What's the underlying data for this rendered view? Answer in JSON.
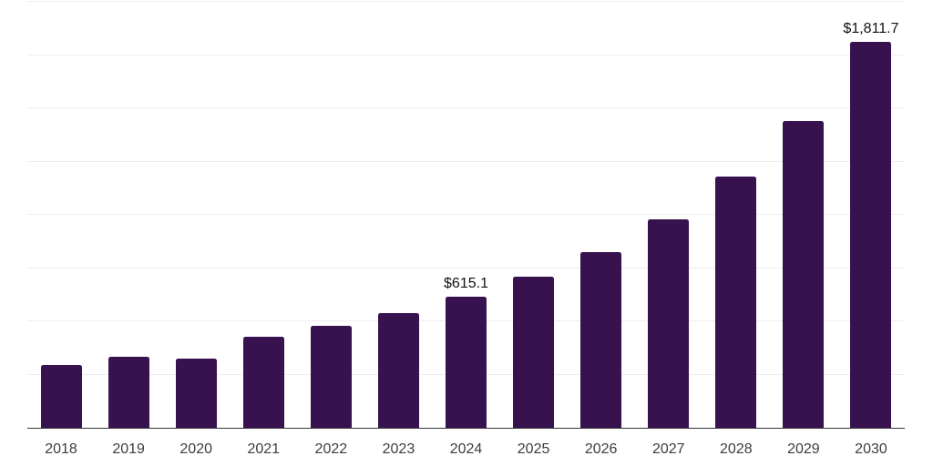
{
  "chart_data": {
    "type": "bar",
    "title": "",
    "xlabel": "",
    "ylabel": "",
    "categories": [
      "2018",
      "2019",
      "2020",
      "2021",
      "2022",
      "2023",
      "2024",
      "2025",
      "2026",
      "2027",
      "2028",
      "2029",
      "2030"
    ],
    "values": [
      295.0,
      335.5,
      327.0,
      428.5,
      479.5,
      539.0,
      615.1,
      708.5,
      823.0,
      979.5,
      1178.5,
      1441.0,
      1811.7
    ],
    "value_labels": {
      "2024": "$615.1",
      "2030": "$1,811.7"
    },
    "ylim": [
      0,
      2000
    ],
    "gridline_step": 250,
    "grid": true,
    "legend": false,
    "y_tick_labels_visible": false
  },
  "colors": {
    "bar": "#38124E",
    "gridline": "#ededed",
    "axis": "#333333",
    "value_label": "#111111",
    "year_label": "#3d3d3d",
    "background": "#ffffff"
  }
}
